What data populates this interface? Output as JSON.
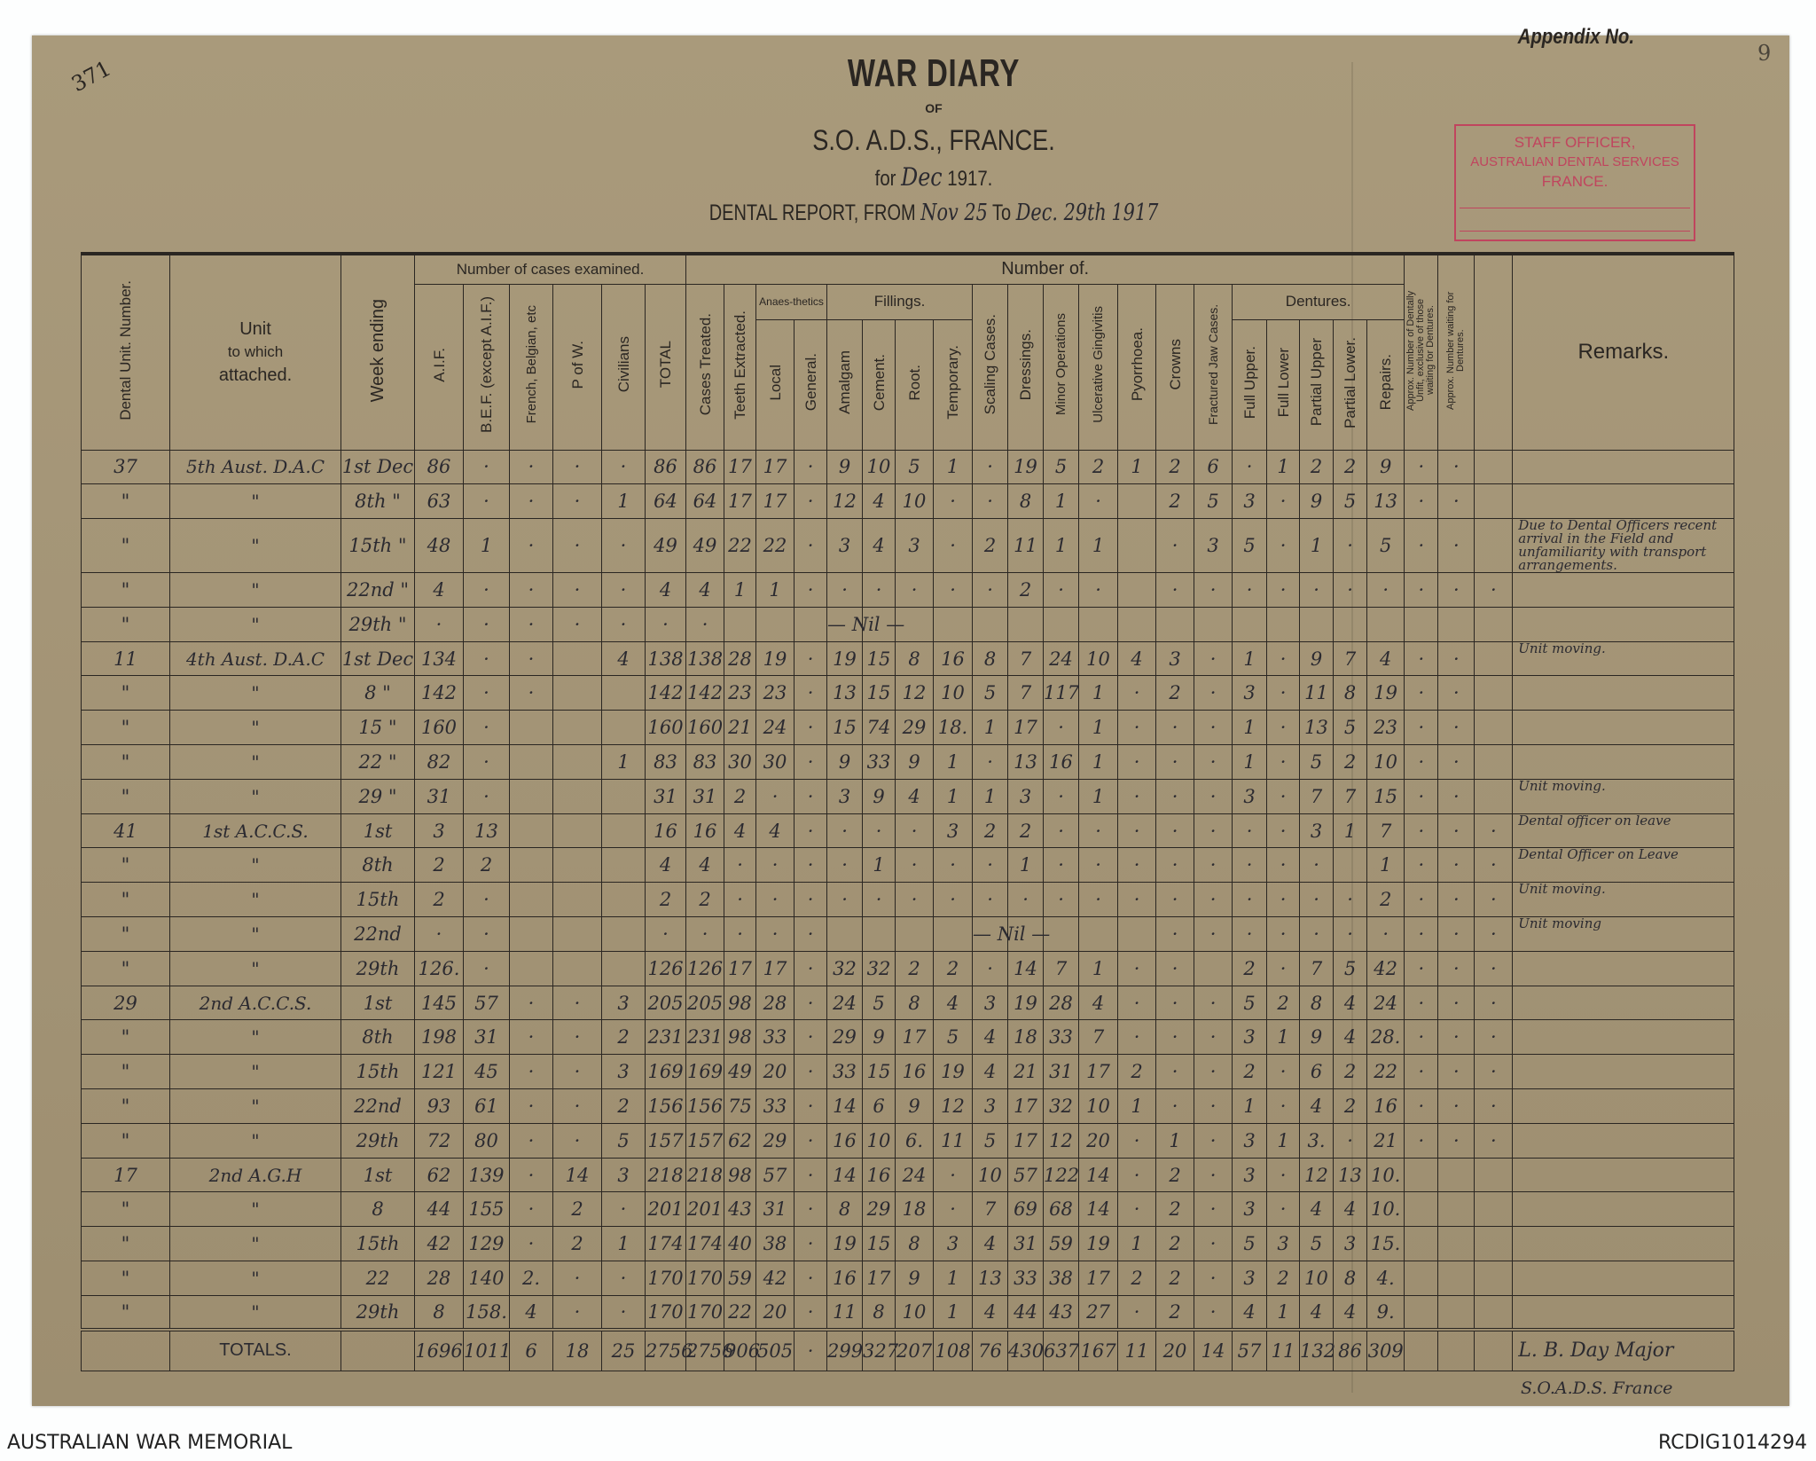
{
  "page": {
    "registry_number": "371",
    "appendix_label": "Appendix No.",
    "page_number": "9",
    "title": "WAR DIARY",
    "of": "OF",
    "organisation": "S.O. A.D.S., FRANCE.",
    "for_prefix": "for",
    "for_month": "Dec",
    "for_year": "1917.",
    "report_prefix": "DENTAL REPORT, FROM",
    "report_from": "Nov 25",
    "report_to_label": "To",
    "report_to": "Dec. 29th",
    "report_year": "1917",
    "stamp_lines": [
      "STAFF OFFICER,",
      "AUSTRALIAN DENTAL SERVICES",
      "FRANCE."
    ],
    "stamp_color": "#c0455e"
  },
  "header": {
    "dental_unit": "Dental Unit. Number.",
    "unit_attached_1": "Unit",
    "unit_attached_2": "to which",
    "unit_attached_3": "attached.",
    "week_ending": "Week ending",
    "cases_examined": "Number of cases examined.",
    "number_of": "Number of.",
    "aif": "A.I.F.",
    "bef": "B.E.F. (except A.I.F.)",
    "french": "French, Belgian, etc",
    "pow": "P of W.",
    "civilians": "Civilians",
    "total": "TOTAL",
    "cases_treated": "Cases Treated.",
    "teeth_extracted": "Teeth Extracted.",
    "anaesthetics": "Anaes-thetics",
    "local": "Local",
    "general": "General.",
    "fillings": "Fillings.",
    "amalgam": "Amalgam",
    "cement": "Cement.",
    "root": "Root.",
    "temporary": "Temporary.",
    "scaling": "Scaling Cases.",
    "dressings": "Dressings.",
    "minor_ops": "Minor Operations",
    "gingivitis": "Ulcerative Gingivitis",
    "pyorrhoea": "Pyorrhoea.",
    "crowns": "Crowns",
    "fractured_jaw": "Fractured Jaw Cases.",
    "dentures": "Dentures.",
    "full_upper": "Full Upper.",
    "full_lower": "Full Lower",
    "partial_upper": "Partial Upper",
    "partial_lower": "Partial Lower.",
    "repairs": "Repairs.",
    "approx_unfit": "Approx. Number of Dentally Unfit, exclusive of those waiting for Dentures.",
    "approx_waiting": "Approx. Number waiting for Dentures.",
    "remarks": "Remarks."
  },
  "rows": [
    {
      "cells": [
        "37",
        "5th Aust. D.A.C",
        "1st Dec",
        "86",
        "·",
        "·",
        "·",
        "·",
        "86",
        "86",
        "17",
        "17",
        "·",
        "9",
        "10",
        "5",
        "1",
        "·",
        "19",
        "5",
        "2",
        "1",
        "2",
        "6",
        "·",
        "1",
        "2",
        "2",
        "9",
        "·",
        "·",
        ""
      ],
      "remark": ""
    },
    {
      "cells": [
        "\"",
        "\"",
        "8th \"",
        "63",
        "·",
        "·",
        "·",
        "1",
        "64",
        "64",
        "17",
        "17",
        "·",
        "12",
        "4",
        "10",
        "·",
        "·",
        "8",
        "1",
        "·",
        "",
        "2",
        "5",
        "3",
        "·",
        "9",
        "5",
        "13",
        "·",
        "·",
        ""
      ],
      "remark": ""
    },
    {
      "cells": [
        "\"",
        "\"",
        "15th \"",
        "48",
        "1",
        "·",
        "·",
        "·",
        "49",
        "49",
        "22",
        "22",
        "·",
        "3",
        "4",
        "3",
        "·",
        "2",
        "11",
        "1",
        "1",
        "",
        "·",
        "3",
        "5",
        "·",
        "1",
        "·",
        "5",
        "·",
        "·",
        ""
      ],
      "remark": "Due to Dental Officers recent arrival in the Field and unfamiliarity with transport arrangements."
    },
    {
      "cells": [
        "\"",
        "\"",
        "22nd \"",
        "4",
        "·",
        "·",
        "·",
        "·",
        "4",
        "4",
        "1",
        "1",
        "·",
        "·",
        "·",
        "·",
        "·",
        "·",
        "2",
        "·",
        "·",
        "",
        "·",
        "·",
        "·",
        "·",
        "·",
        "·",
        "·",
        "·",
        "·",
        "·"
      ],
      "remark": ""
    },
    {
      "cells": [
        "\"",
        "\"",
        "29th \"",
        "·",
        "·",
        "·",
        "·",
        "·",
        "·",
        "·",
        "",
        "",
        "",
        "— Nil —",
        "",
        "",
        "",
        "",
        "",
        "",
        "",
        "",
        "",
        "",
        "",
        "",
        "",
        "",
        "",
        "",
        "",
        ""
      ],
      "remark": ""
    },
    {
      "cells": [
        "11",
        "4th Aust. D.A.C",
        "1st Dec",
        "134",
        "·",
        "·",
        "",
        "4",
        "138",
        "138",
        "28",
        "19",
        "·",
        "19",
        "15",
        "8",
        "16",
        "8",
        "7",
        "24",
        "10",
        "4",
        "3",
        "·",
        "1",
        "·",
        "9",
        "7",
        "4",
        "·",
        "·",
        ""
      ],
      "remark": "Unit moving."
    },
    {
      "cells": [
        "\"",
        "\"",
        "8 \"",
        "142",
        "·",
        "·",
        "",
        "",
        "142",
        "142",
        "23",
        "23",
        "·",
        "13",
        "15",
        "12",
        "10",
        "5",
        "7",
        "117",
        "1",
        "·",
        "2",
        "·",
        "3",
        "·",
        "11",
        "8",
        "19",
        "·",
        "·",
        ""
      ],
      "remark": ""
    },
    {
      "cells": [
        "\"",
        "\"",
        "15 \"",
        "160",
        "·",
        "",
        "",
        "",
        "160",
        "160",
        "21",
        "24",
        "·",
        "15",
        "74",
        "29",
        "18.",
        "1",
        "17",
        "·",
        "1",
        "·",
        "·",
        "·",
        "1",
        "·",
        "13",
        "5",
        "23",
        "·",
        "·",
        ""
      ],
      "remark": ""
    },
    {
      "cells": [
        "\"",
        "\"",
        "22 \"",
        "82",
        "·",
        "",
        "",
        "1",
        "83",
        "83",
        "30",
        "30",
        "·",
        "9",
        "33",
        "9",
        "1",
        "·",
        "13",
        "16",
        "1",
        "·",
        "·",
        "·",
        "1",
        "·",
        "5",
        "2",
        "10",
        "·",
        "·",
        ""
      ],
      "remark": ""
    },
    {
      "cells": [
        "\"",
        "\"",
        "29 \"",
        "31",
        "·",
        "",
        "",
        "",
        "31",
        "31",
        "2",
        "·",
        "·",
        "3",
        "9",
        "4",
        "1",
        "1",
        "3",
        "·",
        "1",
        "·",
        "·",
        "·",
        "3",
        "·",
        "7",
        "7",
        "15",
        "·",
        "·",
        ""
      ],
      "remark": "Unit moving."
    },
    {
      "cells": [
        "41",
        "1st A.C.C.S.",
        "1st",
        "3",
        "13",
        "",
        "",
        "",
        "16",
        "16",
        "4",
        "4",
        "·",
        "·",
        "·",
        "·",
        "3",
        "2",
        "2",
        "·",
        "·",
        "·",
        "·",
        "·",
        "·",
        "·",
        "3",
        "1",
        "7",
        "·",
        "·",
        "·"
      ],
      "remark": "Dental officer on leave"
    },
    {
      "cells": [
        "\"",
        "\"",
        "8th",
        "2",
        "2",
        "",
        "",
        "",
        "4",
        "4",
        "·",
        "·",
        "·",
        "·",
        "1",
        "·",
        "·",
        "·",
        "1",
        "·",
        "·",
        "·",
        "·",
        "·",
        "·",
        "·",
        "·",
        "",
        "1",
        "·",
        "·",
        "·"
      ],
      "remark": "Dental Officer on Leave"
    },
    {
      "cells": [
        "\"",
        "\"",
        "15th",
        "2",
        "·",
        "",
        "",
        "",
        "2",
        "2",
        "·",
        "·",
        "·",
        "·",
        "·",
        "·",
        "·",
        "·",
        "·",
        "·",
        "·",
        "·",
        "·",
        "·",
        "·",
        "·",
        "·",
        "·",
        "2",
        "·",
        "·",
        "·"
      ],
      "remark": "Unit moving."
    },
    {
      "cells": [
        "\"",
        "\"",
        "22nd",
        "·",
        "·",
        "",
        "",
        "",
        "·",
        "·",
        "·",
        "·",
        "·",
        "",
        "",
        "",
        "",
        "— Nil —",
        "",
        "",
        "",
        "",
        "·",
        "·",
        "·",
        "·",
        "·",
        "·",
        "·",
        "·",
        "·",
        "·"
      ],
      "remark": "Unit moving"
    },
    {
      "cells": [
        "\"",
        "\"",
        "29th",
        "126.",
        "·",
        "",
        "",
        "",
        "126",
        "126",
        "17",
        "17",
        "·",
        "32",
        "32",
        "2",
        "2",
        "·",
        "14",
        "7",
        "1",
        "·",
        "·",
        "",
        "2",
        "·",
        "7",
        "5",
        "42",
        "·",
        "·",
        "·"
      ],
      "remark": ""
    },
    {
      "cells": [
        "29",
        "2nd A.C.C.S.",
        "1st",
        "145",
        "57",
        "·",
        "·",
        "3",
        "205",
        "205",
        "98",
        "28",
        "·",
        "24",
        "5",
        "8",
        "4",
        "3",
        "19",
        "28",
        "4",
        "·",
        "·",
        "·",
        "5",
        "2",
        "8",
        "4",
        "24",
        "·",
        "·",
        "·"
      ],
      "remark": ""
    },
    {
      "cells": [
        "\"",
        "\"",
        "8th",
        "198",
        "31",
        "·",
        "·",
        "2",
        "231",
        "231",
        "98",
        "33",
        "·",
        "29",
        "9",
        "17",
        "5",
        "4",
        "18",
        "33",
        "7",
        "·",
        "·",
        "·",
        "3",
        "1",
        "9",
        "4",
        "28.",
        "·",
        "·",
        "·"
      ],
      "remark": ""
    },
    {
      "cells": [
        "\"",
        "\"",
        "15th",
        "121",
        "45",
        "·",
        "·",
        "3",
        "169",
        "169",
        "49",
        "20",
        "·",
        "33",
        "15",
        "16",
        "19",
        "4",
        "21",
        "31",
        "17",
        "2",
        "·",
        "·",
        "2",
        "·",
        "6",
        "2",
        "22",
        "·",
        "·",
        "·"
      ],
      "remark": ""
    },
    {
      "cells": [
        "\"",
        "\"",
        "22nd",
        "93",
        "61",
        "·",
        "·",
        "2",
        "156",
        "156",
        "75",
        "33",
        "·",
        "14",
        "6",
        "9",
        "12",
        "3",
        "17",
        "32",
        "10",
        "1",
        "·",
        "·",
        "1",
        "·",
        "4",
        "2",
        "16",
        "·",
        "·",
        "·"
      ],
      "remark": ""
    },
    {
      "cells": [
        "\"",
        "\"",
        "29th",
        "72",
        "80",
        "·",
        "·",
        "5",
        "157",
        "157",
        "62",
        "29",
        "·",
        "16",
        "10",
        "6.",
        "11",
        "5",
        "17",
        "12",
        "20",
        "·",
        "1",
        "·",
        "3",
        "1",
        "3.",
        "·",
        "21",
        "·",
        "·",
        "·"
      ],
      "remark": ""
    },
    {
      "cells": [
        "17",
        "2nd A.G.H",
        "1st",
        "62",
        "139",
        "·",
        "14",
        "3",
        "218",
        "218",
        "98",
        "57",
        "·",
        "14",
        "16",
        "24",
        "·",
        "10",
        "57",
        "122",
        "14",
        "·",
        "2",
        "·",
        "3",
        "·",
        "12",
        "13",
        "10.",
        "",
        "",
        ""
      ],
      "remark": ""
    },
    {
      "cells": [
        "\"",
        "\"",
        "8",
        "44",
        "155",
        "·",
        "2",
        "·",
        "201",
        "201",
        "43",
        "31",
        "·",
        "8",
        "29",
        "18",
        "·",
        "7",
        "69",
        "68",
        "14",
        "·",
        "2",
        "·",
        "3",
        "·",
        "4",
        "4",
        "10.",
        "",
        "",
        ""
      ],
      "remark": ""
    },
    {
      "cells": [
        "\"",
        "\"",
        "15th",
        "42",
        "129",
        "·",
        "2",
        "1",
        "174",
        "174",
        "40",
        "38",
        "·",
        "19",
        "15",
        "8",
        "3",
        "4",
        "31",
        "59",
        "19",
        "1",
        "2",
        "·",
        "5",
        "3",
        "5",
        "3",
        "15.",
        "",
        "",
        ""
      ],
      "remark": ""
    },
    {
      "cells": [
        "\"",
        "\"",
        "22",
        "28",
        "140",
        "2.",
        "·",
        "·",
        "170",
        "170",
        "59",
        "42",
        "·",
        "16",
        "17",
        "9",
        "1",
        "13",
        "33",
        "38",
        "17",
        "2",
        "2",
        "·",
        "3",
        "2",
        "10",
        "8",
        "4.",
        "",
        "",
        ""
      ],
      "remark": ""
    },
    {
      "cells": [
        "\"",
        "\"",
        "29th",
        "8",
        "158.",
        "4",
        "·",
        "·",
        "170",
        "170",
        "22",
        "20",
        "·",
        "11",
        "8",
        "10",
        "1",
        "4",
        "44",
        "43",
        "27",
        "·",
        "2",
        "·",
        "4",
        "1",
        "4",
        "4",
        "9.",
        "",
        "",
        ""
      ],
      "remark": ""
    }
  ],
  "totals": {
    "label": "TOTALS.",
    "cells": [
      "",
      "",
      "",
      "1696",
      "1011",
      "6",
      "18",
      "25",
      "2756",
      "2756",
      "906",
      "505",
      "·",
      "299",
      "327",
      "207",
      "108",
      "76",
      "430",
      "637",
      "167",
      "11",
      "20",
      "14",
      "57",
      "11",
      "132",
      "86",
      "309",
      "",
      "",
      ""
    ],
    "signature": "L. B. Day Major",
    "signature_title": "S.O.A.D.S. France"
  },
  "footer": {
    "left": "AUSTRALIAN WAR MEMORIAL",
    "right": "RCDIG1014294"
  }
}
